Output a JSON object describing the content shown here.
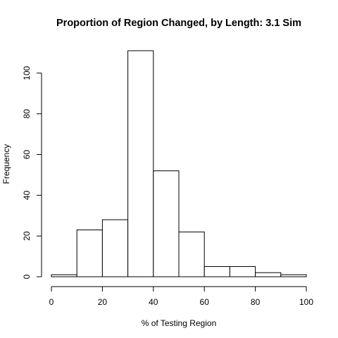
{
  "chart_data": {
    "type": "bar",
    "subtype": "histogram",
    "title": "Proportion of Region Changed, by Length: 3.1 Sim",
    "xlabel": "% of Testing Region",
    "ylabel": "Frequency",
    "xlim": [
      0,
      100
    ],
    "ylim": [
      0,
      111
    ],
    "grid": false,
    "legend": "none",
    "bins": [
      {
        "start": 0,
        "end": 10,
        "value": 1
      },
      {
        "start": 10,
        "end": 20,
        "value": 23
      },
      {
        "start": 20,
        "end": 30,
        "value": 28
      },
      {
        "start": 30,
        "end": 40,
        "value": 111
      },
      {
        "start": 40,
        "end": 50,
        "value": 52
      },
      {
        "start": 50,
        "end": 60,
        "value": 22
      },
      {
        "start": 60,
        "end": 70,
        "value": 5
      },
      {
        "start": 70,
        "end": 80,
        "value": 5
      },
      {
        "start": 80,
        "end": 90,
        "value": 2
      },
      {
        "start": 90,
        "end": 100,
        "value": 1
      }
    ],
    "x_ticks": [
      0,
      20,
      40,
      60,
      80,
      100
    ],
    "y_ticks": [
      0,
      20,
      40,
      60,
      80,
      100
    ],
    "colors": {
      "bar_fill": "#ffffff",
      "bar_stroke": "#000000"
    }
  }
}
